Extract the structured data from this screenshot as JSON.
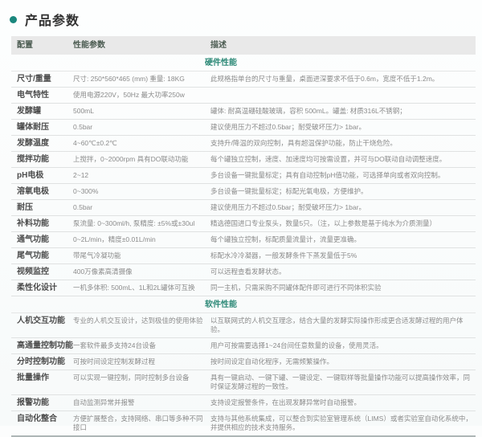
{
  "page": {
    "title": "产品参数",
    "accent_color": "#1a877d",
    "section_color": "#2e8a78",
    "header_bg": "#e9e9e9"
  },
  "table": {
    "columns": [
      "配置",
      "性能参数",
      "描述"
    ],
    "sections": [
      {
        "label": "硬件性能",
        "rows": [
          {
            "config": "尺寸/重量",
            "param": "尺寸: 250*560*465 (mm) 重量: 18KG",
            "desc": "此规格指单台的尺寸与重量，桌面进深要求不低于0.6m，宽度不低于1.2m。"
          },
          {
            "config": "电气特性",
            "param": "使用电源220V，50Hz 最大功率250w",
            "desc": ""
          },
          {
            "config": "发酵罐",
            "param": "500mL",
            "desc": "罐体: 耐高温硼硅酸玻璃，容积 500mL。罐盖: 材质316L不锈钢；"
          },
          {
            "config": "罐体耐压",
            "param": "0.5bar",
            "desc": "建议使用压力不超过0.5bar；耐受破坏压力> 1bar。"
          },
          {
            "config": "发酵温度",
            "param": "4~60℃±0.2℃",
            "desc": "支持升/降温的双向控制，具有超温保护功能，防止干烧危险。"
          },
          {
            "config": "搅拌功能",
            "param": "上搅拌，0~2000rpm 具有DO联动功能",
            "desc": "每个罐独立控制，速度、加速度均可按需设置，并可与DO联动自动调整速度。"
          },
          {
            "config": "pH电极",
            "param": "2~12",
            "desc": "多台设备一键批量标定；具有自动控制pH值功能，可选择单向或者双向控制。"
          },
          {
            "config": "溶氧电极",
            "param": "0~300%",
            "desc": "多台设备一键批量标定；标配光氧电极，方便维护。"
          },
          {
            "config": "耐压",
            "param": "0.5bar",
            "desc": "建议使用压力不超过0.5bar；耐受破坏压力> 1bar。"
          },
          {
            "config": "补料功能",
            "param": "泵流量: 0~300ml/h, 泵精度: ±5%或±30ul",
            "desc": "精选德国进口专业泵头，数量5只。（注，以上参数是基于纯水为介质测量）"
          },
          {
            "config": "通气功能",
            "param": "0~2L/min，精度±0.01L/min",
            "desc": "每个罐独立控制，标配质量流量计，流量更准确。"
          },
          {
            "config": "尾气功能",
            "param": "带尾气冷凝功能",
            "desc": "标配水冷冷凝器，一般发酵条件下蒸发量低于5%"
          },
          {
            "config": "视频监控",
            "param": "400万像素高清摄像",
            "desc": "可以远程查看发酵状态。"
          },
          {
            "config": "柔性化设计",
            "param": "一机多体积: 500mL、1L和2L罐体可互换",
            "desc": "同一主机，只需采购不同罐体配件即可进行不同体积实验"
          }
        ]
      },
      {
        "label": "软件性能",
        "rows": [
          {
            "config": "人机交互功能",
            "param": "专业的人机交互设计，达到极佳的使用体验",
            "desc": "以互联网式的人机交互理念，结合大量的发酵实际操作形成更合适发酵过程的用户体验。"
          },
          {
            "config": "高通量控制功能",
            "param": "一套软件最多支持24台设备",
            "desc": "用户可按需要选择1~24台间任意数量的设备，使用灵活。"
          },
          {
            "config": "分时控制功能",
            "param": "可按时间设定控制发酵过程",
            "desc": "按时间设定自动化程序，无需频繁操作。"
          },
          {
            "config": "批量操作",
            "param": "可以实现一键控制，同时控制多台设备",
            "desc": "具有一键启动、一键下罐、一键设定、一键取样等批量操作功能可以提高操作效率，同时保证发酵过程的一致性。"
          },
          {
            "config": "报警功能",
            "param": "自动监测异常并报警",
            "desc": "支持设定报警条件，在出现发酵异常时自动报警。"
          },
          {
            "config": "自动化整合",
            "param": "方便扩展整合，支持网络、串口等多种不同接口",
            "desc": "支持与其他系统集成，可以整合到实验室管理系统（LIMS）或者实验室自动化系统中，并提供相应的技术支持服务。"
          }
        ]
      }
    ]
  }
}
